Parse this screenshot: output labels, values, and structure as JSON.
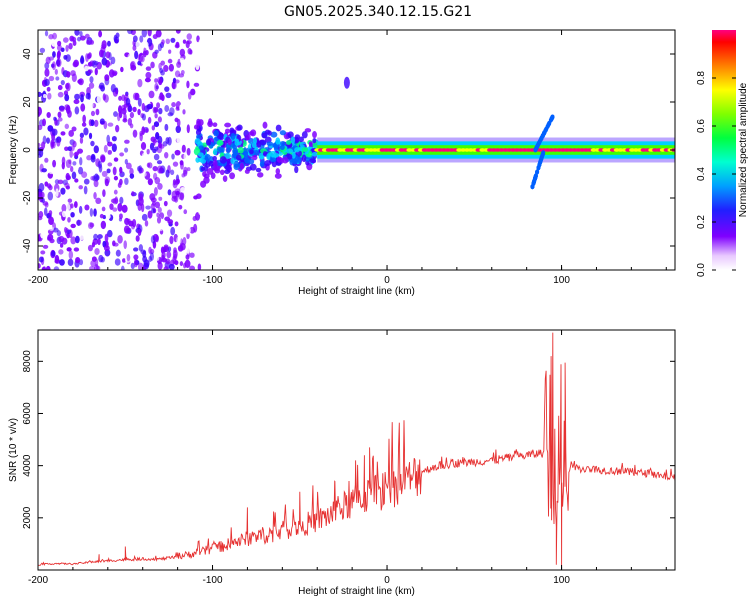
{
  "figure_title": "GN05.2025.340.12.15.G21",
  "colors": {
    "snr_line": "#e63232",
    "trace_core": "#e8303c",
    "grid": "#000000",
    "colormap": [
      "#ffffff",
      "#7f00ff",
      "#3b00ff",
      "#0060ff",
      "#00d0ff",
      "#00ff80",
      "#40ff00",
      "#ffff00",
      "#ff9000",
      "#ff0000",
      "#ff0080"
    ]
  },
  "chart_data": [
    {
      "type": "heatmap",
      "xlabel": "Height of straight line (km)",
      "ylabel": "Frequency (Hz)",
      "xlim": [
        -200,
        165
      ],
      "ylim": [
        -50,
        50
      ],
      "xticks": [
        -200,
        -100,
        0,
        100
      ],
      "yticks": [
        -40,
        -20,
        0,
        20,
        40
      ],
      "colorbar": {
        "label": "Normalized spectral amplitude",
        "range": [
          0,
          1
        ],
        "ticks": [
          0.0,
          0.2,
          0.4,
          0.6,
          0.8
        ]
      },
      "features": [
        {
          "name": "noise field",
          "x_range": [
            -200,
            -100
          ],
          "f_range": [
            -50,
            50
          ],
          "amplitude": 0.12
        },
        {
          "name": "broad cluster",
          "x_range": [
            -110,
            -40
          ],
          "f_range": [
            -10,
            10
          ],
          "amplitude": 0.35
        },
        {
          "name": "main trace",
          "x_range": [
            -40,
            165
          ],
          "f_center": 0,
          "f_width": 4,
          "amplitude": 0.95
        },
        {
          "name": "upper spur",
          "x_range": [
            85,
            95
          ],
          "f_range": [
            0,
            14
          ],
          "amplitude": 0.3
        },
        {
          "name": "lower spur",
          "x_range": [
            83,
            90
          ],
          "f_range": [
            -16,
            0
          ],
          "amplitude": 0.3
        },
        {
          "name": "blob",
          "x": -23,
          "f": 28,
          "amplitude": 0.15
        }
      ]
    },
    {
      "type": "line",
      "xlabel": "Height of straight line (km)",
      "ylabel": "SNR (10 * v/v)",
      "xlim": [
        -200,
        165
      ],
      "ylim": [
        0,
        9200
      ],
      "xticks": [
        -200,
        -100,
        0,
        100
      ],
      "yticks": [
        2000,
        4000,
        6000,
        8000
      ],
      "series": [
        {
          "name": "SNR",
          "x": [
            -200,
            -190,
            -180,
            -170,
            -160,
            -150,
            -140,
            -130,
            -120,
            -110,
            -100,
            -90,
            -80,
            -70,
            -60,
            -50,
            -40,
            -30,
            -20,
            -10,
            0,
            10,
            20,
            30,
            40,
            50,
            60,
            70,
            80,
            90,
            95,
            100,
            105,
            110,
            120,
            130,
            140,
            150,
            160,
            165
          ],
          "y": [
            200,
            250,
            230,
            300,
            350,
            400,
            420,
            420,
            500,
            650,
            800,
            1000,
            1200,
            1350,
            1500,
            1700,
            1900,
            2200,
            2600,
            2900,
            3100,
            3300,
            3800,
            4000,
            4100,
            4150,
            4200,
            4300,
            4400,
            4500,
            2500,
            2800,
            3950,
            3900,
            3850,
            3800,
            3750,
            3700,
            3600,
            3550
          ],
          "peaks": [
            {
              "x": 95,
              "y": 9100
            },
            {
              "x": 94,
              "y": 8200
            },
            {
              "x": 102,
              "y": 7950
            },
            {
              "x": -10,
              "y": 4700
            },
            {
              "x": 10,
              "y": 4600
            },
            {
              "x": -13,
              "y": 4400
            },
            {
              "x": -18,
              "y": 4200
            },
            {
              "x": -30,
              "y": 3400
            },
            {
              "x": -50,
              "y": 3000
            },
            {
              "x": -80,
              "y": 2400
            },
            {
              "x": -150,
              "y": 900
            },
            {
              "x": -165,
              "y": 600
            },
            {
              "x": 100,
              "y": 120
            },
            {
              "x": 97,
              "y": 200
            }
          ]
        }
      ]
    }
  ]
}
